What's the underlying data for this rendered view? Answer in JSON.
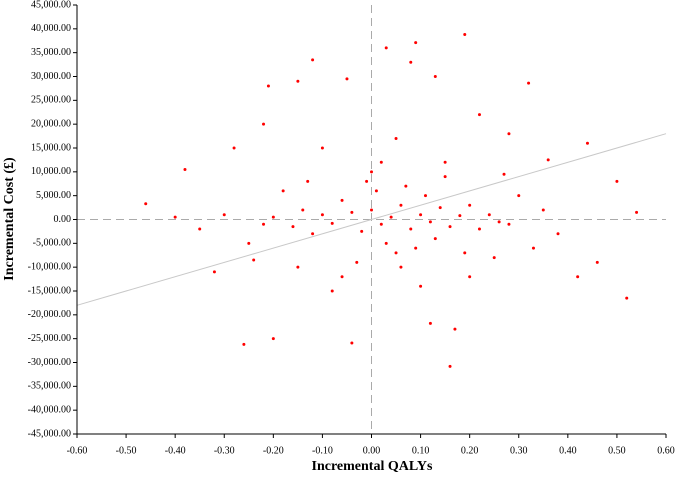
{
  "chart_data": {
    "type": "scatter",
    "x_label": "Incremental QALYs",
    "y_label": "Incremental Cost (£)",
    "color": "#ff0000",
    "xlim": [
      -0.6,
      0.6
    ],
    "ylim": [
      -45000,
      45000
    ],
    "xticks": [
      {
        "value": -0.6,
        "label": "-0.60"
      },
      {
        "value": -0.5,
        "label": "-0.50"
      },
      {
        "value": -0.4,
        "label": "-0.40"
      },
      {
        "value": -0.3,
        "label": "-0.30"
      },
      {
        "value": -0.2,
        "label": "-0.20"
      },
      {
        "value": -0.1,
        "label": "-0.10"
      },
      {
        "value": 0,
        "label": "0.00"
      },
      {
        "value": 0.1,
        "label": "0.10"
      },
      {
        "value": 0.2,
        "label": "0.20"
      },
      {
        "value": 0.3,
        "label": "0.30"
      },
      {
        "value": 0.4,
        "label": "0.40"
      },
      {
        "value": 0.5,
        "label": "0.50"
      },
      {
        "value": 0.6,
        "label": "0.60"
      }
    ],
    "yticks": [
      {
        "value": 45000,
        "label": "45,000.00"
      },
      {
        "value": 40000,
        "label": "40,000.00"
      },
      {
        "value": 35000,
        "label": "35,000.00"
      },
      {
        "value": 30000,
        "label": "30,000.00"
      },
      {
        "value": 25000,
        "label": "25,000.00"
      },
      {
        "value": 20000,
        "label": "20,000.00"
      },
      {
        "value": 15000,
        "label": "15,000.00"
      },
      {
        "value": 10000,
        "label": "10,000.00"
      },
      {
        "value": 5000,
        "label": "5,000.00"
      },
      {
        "value": 0,
        "label": "0.00"
      },
      {
        "value": -5000,
        "label": "-5,000.00"
      },
      {
        "value": -10000,
        "label": "-10,000.00"
      },
      {
        "value": -15000,
        "label": "-15,000.00"
      },
      {
        "value": -20000,
        "label": "-20,000.00"
      },
      {
        "value": -25000,
        "label": "-25,000.00"
      },
      {
        "value": -30000,
        "label": "-30,000.00"
      },
      {
        "value": -35000,
        "label": "-35,000.00"
      },
      {
        "value": -40000,
        "label": "-40,000.00"
      },
      {
        "value": -45000,
        "label": "-45,000.00"
      }
    ],
    "threshold_line": {
      "x": [
        -0.6,
        0.6
      ],
      "y": [
        -18000,
        18000
      ],
      "color": "#c8c8c8"
    },
    "x": [
      0.19,
      0.09,
      0.03,
      -0.12,
      0.32,
      -0.15,
      -0.21,
      0.08,
      0.13,
      -0.05,
      -0.26,
      0.16,
      -0.2,
      0.17,
      -0.04,
      0.12,
      0.52,
      0.54,
      -0.46,
      -0.38,
      -0.4,
      -0.35,
      0.46,
      0.44,
      0.5,
      0.42,
      -0.28,
      -0.22,
      0.22,
      0.28,
      -0.1,
      0.05,
      0.15,
      -0.08,
      0.1,
      0.2,
      -0.15,
      0.25,
      -0.25,
      0.3,
      0.35,
      -0.3,
      0.38,
      0.33,
      -0.18,
      -0.12,
      -0.06,
      0,
      0.02,
      0.04,
      0.06,
      0.08,
      0.1,
      0.12,
      0.14,
      0.16,
      0.18,
      -0.02,
      -0.04,
      -0.08,
      0.01,
      0.03,
      0.07,
      0.09,
      -0.01,
      0.05,
      0.11,
      0.13,
      -0.03,
      0,
      0.2,
      0.22,
      0.24,
      0.26,
      -0.14,
      -0.16,
      -0.2,
      -0.22,
      0.28,
      -0.1,
      0.06,
      0.02,
      -0.06,
      0.15,
      -0.13,
      0.19,
      0.27,
      -0.24,
      0.36,
      -0.32
    ],
    "y": [
      38800,
      37100,
      36000,
      33500,
      28600,
      29000,
      28000,
      33000,
      30000,
      29500,
      -26200,
      -30800,
      -25000,
      -23000,
      -25900,
      -21800,
      -16500,
      1500,
      3300,
      10500,
      500,
      -2000,
      -9000,
      16000,
      8000,
      -12000,
      15000,
      20000,
      22000,
      18000,
      15000,
      17000,
      12000,
      -15000,
      -14000,
      -12000,
      -10000,
      -8000,
      -5000,
      5000,
      2000,
      1000,
      -3000,
      -6000,
      6000,
      -3000,
      4000,
      2000,
      -1000,
      500,
      3000,
      -2000,
      1000,
      -500,
      2500,
      -1500,
      800,
      -2500,
      1500,
      -800,
      6000,
      -5000,
      7000,
      -6000,
      8000,
      -7000,
      5000,
      -4000,
      -9000,
      10000,
      3000,
      -2000,
      1000,
      -500,
      2000,
      -1500,
      500,
      -1000,
      -1000,
      1000,
      -10000,
      12000,
      -12000,
      9000,
      8000,
      -7000,
      9500,
      -8500,
      12500,
      -11000
    ]
  }
}
